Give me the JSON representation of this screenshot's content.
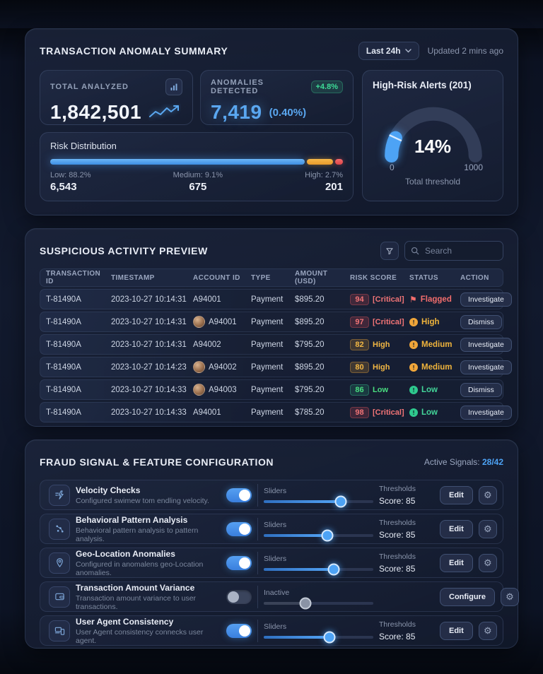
{
  "colors": {
    "accent_blue": "#4da3f5",
    "green": "#3ddc97",
    "orange": "#f0a63a",
    "red": "#f26d6d",
    "bg": "#0d1425"
  },
  "summary": {
    "title": "TRANSACTION ANOMALY SUMMARY",
    "time_range": "Last 24h",
    "updated": "Updated 2 mins ago",
    "total_analyzed": {
      "label": "TOTAL ANALYZED",
      "value": "1,842,501"
    },
    "anomalies": {
      "label": "ANOMALIES DETECTED",
      "badge": "+4.8%",
      "value": "7,419",
      "pct": "(0.40%)"
    },
    "high_risk": {
      "title": "High-Risk Alerts (201)",
      "gauge_percent": 14,
      "percent_label": "14%",
      "min": "0",
      "max": "1000",
      "caption": "Total threshold"
    },
    "risk_distribution": {
      "title": "Risk Distribution",
      "segments": [
        {
          "name": "Low",
          "pct": 88.2,
          "label": "Low: 88.2%",
          "value": "6,543",
          "color": "#4da3f5"
        },
        {
          "name": "Medium",
          "pct": 9.1,
          "label": "Medium: 9.1%",
          "value": "675",
          "color": "#f0a63a"
        },
        {
          "name": "High",
          "pct": 2.7,
          "label": "High: 2.7%",
          "value": "201",
          "color": "#f2686a"
        }
      ]
    }
  },
  "activity": {
    "title": "SUSPICIOUS ACTIVITY PREVIEW",
    "search_placeholder": "Search",
    "columns": [
      "TRANSACTION ID",
      "TIMESTAMP",
      "ACCOUNT ID",
      "TYPE",
      "AMOUNT (USD)",
      "RISK SCORE",
      "STATUS",
      "ACTION"
    ],
    "rows": [
      {
        "id": "T-81490A",
        "timestamp": "2023-10-27 10:14:31",
        "account": "A94001",
        "type": "Payment",
        "amount": "$895.20",
        "score": "94",
        "score_label": "[Critical]",
        "severity": "critical",
        "status": "Flagged",
        "status_level": "flagged",
        "action": "Investigate"
      },
      {
        "id": "T-81490A",
        "timestamp": "2023-10-27 10:14:31",
        "account": "A94001",
        "type": "Payment",
        "amount": "$895.20",
        "score": "97",
        "score_label": "[Critical]",
        "severity": "critical",
        "status": "High",
        "status_level": "high",
        "action": "Dismiss"
      },
      {
        "id": "T-81490A",
        "timestamp": "2023-10-27 10:14:31",
        "account": "A94002",
        "type": "Payment",
        "amount": "$795.20",
        "score": "82",
        "score_label": "High",
        "severity": "high",
        "status": "Medium",
        "status_level": "medium",
        "action": "Investigate"
      },
      {
        "id": "T-81490A",
        "timestamp": "2023-10-27 10:14:23",
        "account": "A94002",
        "type": "Payment",
        "amount": "$895.20",
        "score": "80",
        "score_label": "High",
        "severity": "high",
        "status": "Medium",
        "status_level": "medium",
        "action": "Investigate"
      },
      {
        "id": "T-81490A",
        "timestamp": "2023-10-27 10:14:33",
        "account": "A94003",
        "type": "Payment",
        "amount": "$795.20",
        "score": "86",
        "score_label": "Low",
        "severity": "low",
        "status": "Low",
        "status_level": "low",
        "action": "Dismiss"
      },
      {
        "id": "T-81490A",
        "timestamp": "2023-10-27 10:14:33",
        "account": "A94001",
        "type": "Payment",
        "amount": "$785.20",
        "score": "98",
        "score_label": "[Critical]",
        "severity": "critical",
        "status": "Low",
        "status_level": "low",
        "action": "Investigate"
      }
    ]
  },
  "config": {
    "title": "FRAUD SIGNAL & FEATURE CONFIGURATION",
    "active_label": "Active Signals:",
    "active_value": "28/42",
    "features": [
      {
        "name": "Velocity Checks",
        "desc": "Configured swimew tom endling velocity.",
        "enabled": true,
        "slider_label": "Sliders",
        "slider_pct": 70,
        "threshold_label": "Thresholds",
        "score": "Score: 85",
        "action": "Edit"
      },
      {
        "name": "Behavioral Pattern Analysis",
        "desc": "Behavioral pattern analysis to pattern analysis.",
        "enabled": true,
        "slider_label": "Sliders",
        "slider_pct": 58,
        "threshold_label": "Thresholds",
        "score": "Score: 85",
        "action": "Edit"
      },
      {
        "name": "Geo-Location Anomalies",
        "desc": "Configured in anomalens geo-Location anomalies.",
        "enabled": true,
        "slider_label": "Sliders",
        "slider_pct": 64,
        "threshold_label": "Thresholds",
        "score": "Score: 85",
        "action": "Edit"
      },
      {
        "name": "Transaction Amount Variance",
        "desc": "Transaction amount variance to user transactions.",
        "enabled": false,
        "slider_label": "Inactive",
        "slider_pct": 38,
        "threshold_label": "",
        "score": "",
        "action": "Configure"
      },
      {
        "name": "User Agent Consistency",
        "desc": "User Agent consistency connecks user agent.",
        "enabled": true,
        "slider_label": "Sliders",
        "slider_pct": 60,
        "threshold_label": "Thresholds",
        "score": "Score: 85",
        "action": "Edit"
      }
    ]
  }
}
